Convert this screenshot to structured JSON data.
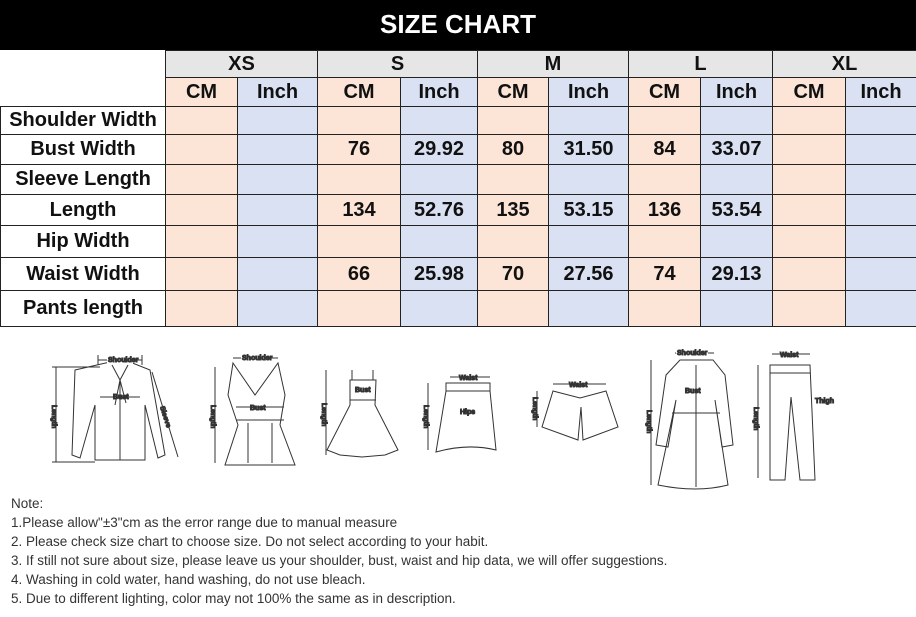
{
  "title": "SIZE CHART",
  "table": {
    "sizes": [
      "XS",
      "S",
      "M",
      "L",
      "XL"
    ],
    "units": [
      "CM",
      "Inch"
    ],
    "rows": [
      {
        "label": "Shoulder Width",
        "values": [
          [
            "",
            ""
          ],
          [
            "",
            ""
          ],
          [
            "",
            ""
          ],
          [
            "",
            ""
          ],
          [
            "",
            ""
          ]
        ]
      },
      {
        "label": "Bust Width",
        "values": [
          [
            "",
            ""
          ],
          [
            "76",
            "29.92"
          ],
          [
            "80",
            "31.50"
          ],
          [
            "84",
            "33.07"
          ],
          [
            "",
            ""
          ]
        ]
      },
      {
        "label": "Sleeve Length",
        "values": [
          [
            "",
            ""
          ],
          [
            "",
            ""
          ],
          [
            "",
            ""
          ],
          [
            "",
            ""
          ],
          [
            "",
            ""
          ]
        ]
      },
      {
        "label": "Length",
        "values": [
          [
            "",
            ""
          ],
          [
            "134",
            "52.76"
          ],
          [
            "135",
            "53.15"
          ],
          [
            "136",
            "53.54"
          ],
          [
            "",
            ""
          ]
        ]
      },
      {
        "label": "Hip Width",
        "values": [
          [
            "",
            ""
          ],
          [
            "",
            ""
          ],
          [
            "",
            ""
          ],
          [
            "",
            ""
          ],
          [
            "",
            ""
          ]
        ]
      },
      {
        "label": "Waist Width",
        "values": [
          [
            "",
            ""
          ],
          [
            "66",
            "25.98"
          ],
          [
            "70",
            "27.56"
          ],
          [
            "74",
            "29.13"
          ],
          [
            "",
            ""
          ]
        ]
      },
      {
        "label": "Pants length",
        "values": [
          [
            "",
            ""
          ],
          [
            "",
            ""
          ],
          [
            "",
            ""
          ],
          [
            "",
            ""
          ],
          [
            "",
            ""
          ]
        ]
      }
    ],
    "colors": {
      "size_header": "#e7e6e6",
      "cm": "#fce4d6",
      "inch": "#d9e1f2"
    }
  },
  "illustrations": {
    "shirt": {
      "shoulder": "Shoulder",
      "bust": "Bust",
      "length": "Length",
      "sleeve": "Sleeve"
    },
    "tank": {
      "shoulder": "Shoulder",
      "bust": "Bust",
      "length": "Length"
    },
    "dress": {
      "bust": "Bust",
      "length": "Length"
    },
    "skirt": {
      "waist": "Waist",
      "hips": "Hips",
      "length": "Length"
    },
    "shorts": {
      "waist": "Waist",
      "length": "Length"
    },
    "coat": {
      "shoulder": "Shoulder",
      "bust": "Bust",
      "length": "Length"
    },
    "pants": {
      "waist": "Waist",
      "thigh": "Thigh",
      "length": "Length"
    }
  },
  "notes": [
    "Note:",
    "1.Please allow\"±3\"cm as the error range due to manual measure",
    "2. Please check size chart to choose size. Do not select according to your habit.",
    "3. If still not sure about size, please leave us your shoulder, bust, waist and hip data, we will offer suggestions.",
    "4. Washing in cold water, hand washing, do not use bleach.",
    "5. Due to different lighting, color may not 100% the same as in description."
  ]
}
